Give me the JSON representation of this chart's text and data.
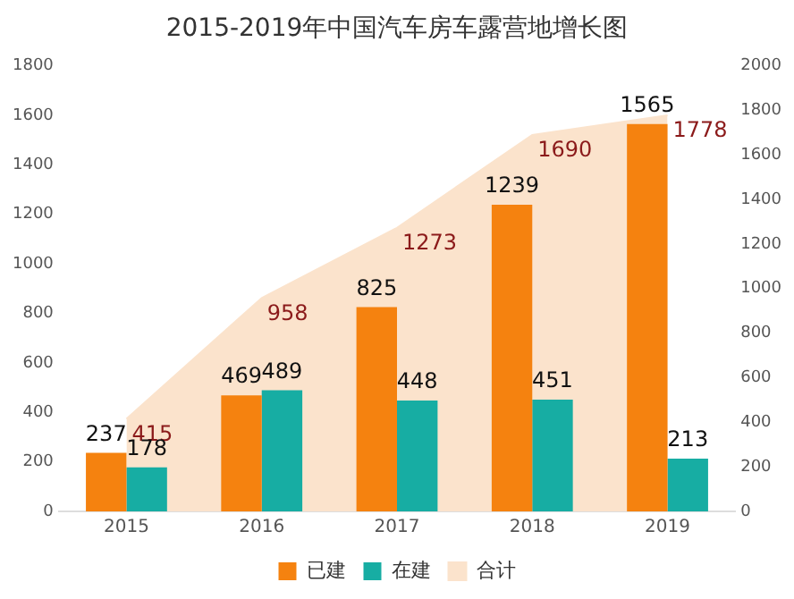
{
  "chart_data": {
    "type": "bar",
    "title": "2015-2019年中国汽车房车露营地增长图",
    "categories": [
      "2015",
      "2016",
      "2017",
      "2018",
      "2019"
    ],
    "series": [
      {
        "name": "合计",
        "type": "area",
        "axis": "y2",
        "color": "#fbe3cc",
        "values": [
          415,
          958,
          1273,
          1690,
          1778
        ]
      },
      {
        "name": "已建",
        "color": "#f5820f",
        "values": [
          237,
          469,
          825,
          1239,
          1565
        ]
      },
      {
        "name": "在建",
        "color": "#17ada3",
        "values": [
          178,
          489,
          448,
          451,
          213
        ]
      }
    ],
    "ylim": [
      0,
      1800
    ],
    "yticks": [
      0,
      200,
      400,
      600,
      800,
      1000,
      1200,
      1400,
      1600,
      1800
    ],
    "y2lim": [
      0,
      2000
    ],
    "y2ticks": [
      0,
      200,
      400,
      600,
      800,
      1000,
      1200,
      1400,
      1600,
      1800,
      2000
    ],
    "grid": false,
    "legend": "bottom",
    "data_labels": true
  }
}
